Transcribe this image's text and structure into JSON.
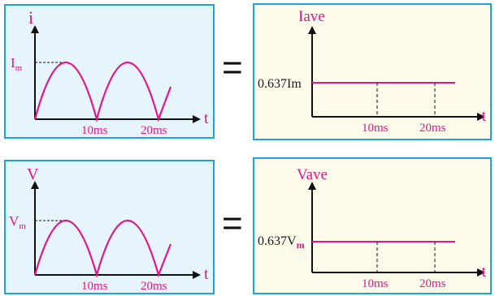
{
  "colors": {
    "panel_border": "#1da3e0",
    "curve": "#e4158b",
    "label": "#e4158b",
    "axis": "#111111",
    "left_bg": "#e6f4fb",
    "right_bg": "#fffbea"
  },
  "equals_sign": "=",
  "current": {
    "waveform": {
      "y_label": "i",
      "peak_label_main": "I",
      "peak_label_sub": "m",
      "x_label": "t",
      "ticks": [
        "10ms",
        "20ms"
      ]
    },
    "average": {
      "y_label": "Iave",
      "level_label": "0.637Im",
      "x_label": "t",
      "ticks": [
        "10ms",
        "20ms"
      ]
    }
  },
  "voltage": {
    "waveform": {
      "y_label": "V",
      "peak_label_main": "V",
      "peak_label_sub": "m",
      "x_label": "t",
      "ticks": [
        "10ms",
        "20ms"
      ]
    },
    "average": {
      "y_label": "Vave",
      "level_label_main": "0.637V",
      "level_label_sub": "m",
      "x_label": "t",
      "ticks": [
        "10ms",
        "20ms"
      ]
    }
  }
}
